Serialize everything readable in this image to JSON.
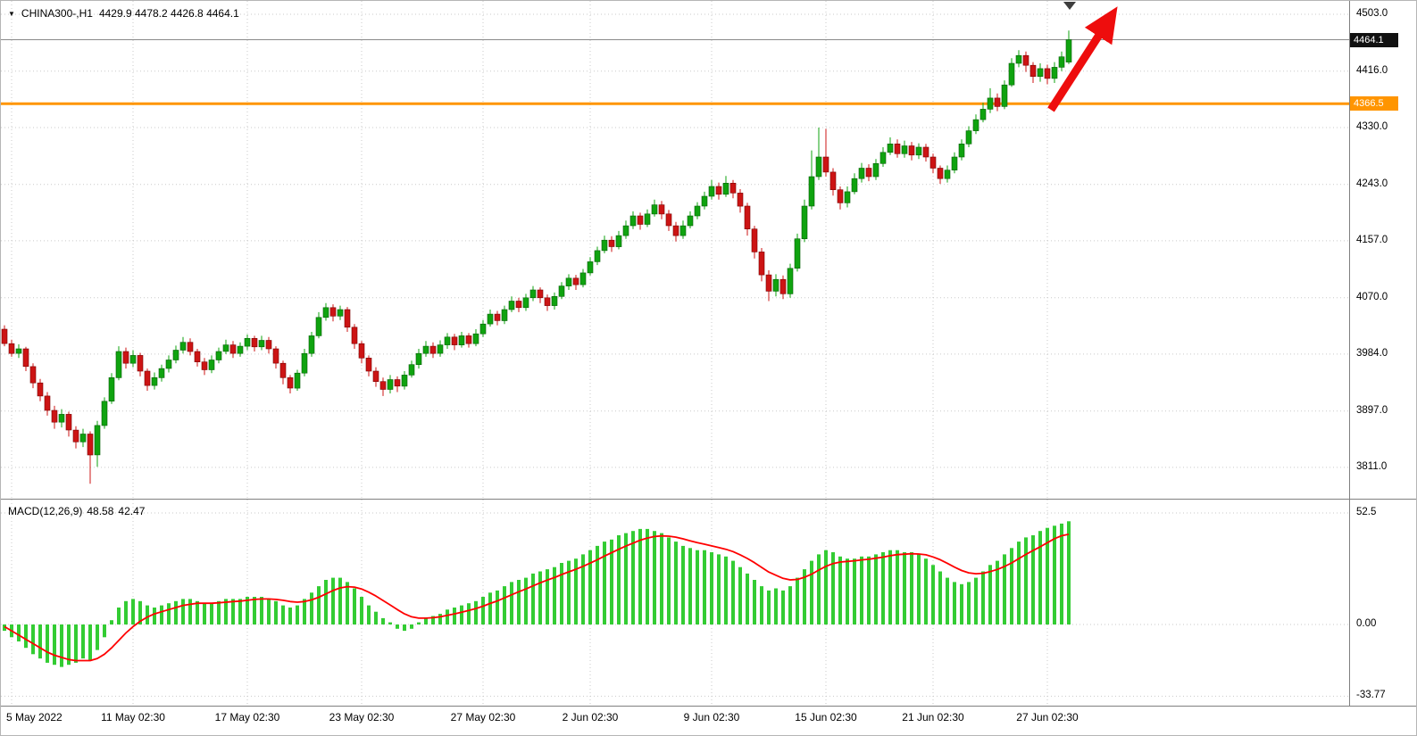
{
  "header": {
    "dropdown_icon": "▼",
    "symbol": "CHINA300-,H1",
    "values": "4429.9 4478.2 4426.8 4464.1"
  },
  "colors": {
    "bull": "#0fa30f",
    "bull_dark": "#055f05",
    "bear": "#cc1414",
    "bear_dark": "#7a0000",
    "hist": "#33cc33",
    "signal": "#ff0000",
    "hline": "#ff9500",
    "grid": "#c9c9c9",
    "price_line": "#8a8a8a",
    "badge_bg": "#111111",
    "arrow": "#ee0d0d",
    "shift_marker": "#3d3d3d"
  },
  "chart_data": {
    "type": "candlestick+macd",
    "title": "CHINA300-,H1",
    "symbol": "CHINA300-",
    "timeframe": "H1",
    "current_bar": {
      "open": 4429.9,
      "high": 4478.2,
      "low": 4426.8,
      "close": 4464.1
    },
    "price_axis": {
      "ticks": [
        "4503.0",
        "4416.0",
        "4330.0",
        "4243.0",
        "4157.0",
        "4070.0",
        "3984.0",
        "3897.0",
        "3811.0"
      ],
      "visible_range": [
        3762,
        4523
      ],
      "current_price": 4464.1,
      "current_price_label": "4464.1",
      "hline_value": 4366.5,
      "hline_label": "4366.5"
    },
    "x_axis": {
      "labels": [
        {
          "text": "5 May 2022",
          "index": 1
        },
        {
          "text": "11 May 02:30",
          "index": 18
        },
        {
          "text": "17 May 02:30",
          "index": 34
        },
        {
          "text": "23 May 02:30",
          "index": 50
        },
        {
          "text": "27 May 02:30",
          "index": 67
        },
        {
          "text": "2 Jun 02:30",
          "index": 82
        },
        {
          "text": "9 Jun 02:30",
          "index": 99
        },
        {
          "text": "15 Jun 02:30",
          "index": 115
        },
        {
          "text": "21 Jun 02:30",
          "index": 130
        },
        {
          "text": "27 Jun 02:30",
          "index": 146
        }
      ]
    },
    "candles": [
      [
        4022,
        4028,
        3996,
        4000
      ],
      [
        4000,
        4006,
        3980,
        3985
      ],
      [
        3985,
        3999,
        3978,
        3992
      ],
      [
        3992,
        3995,
        3958,
        3965
      ],
      [
        3965,
        3970,
        3932,
        3940
      ],
      [
        3940,
        3946,
        3912,
        3920
      ],
      [
        3920,
        3926,
        3890,
        3898
      ],
      [
        3898,
        3905,
        3870,
        3880
      ],
      [
        3880,
        3900,
        3872,
        3892
      ],
      [
        3892,
        3896,
        3858,
        3868
      ],
      [
        3868,
        3874,
        3840,
        3850
      ],
      [
        3850,
        3870,
        3842,
        3862
      ],
      [
        3862,
        3866,
        3786,
        3830
      ],
      [
        3830,
        3882,
        3812,
        3875
      ],
      [
        3875,
        3918,
        3870,
        3912
      ],
      [
        3912,
        3955,
        3908,
        3948
      ],
      [
        3948,
        3996,
        3944,
        3988
      ],
      [
        3988,
        3994,
        3962,
        3970
      ],
      [
        3970,
        3990,
        3964,
        3982
      ],
      [
        3982,
        3986,
        3950,
        3958
      ],
      [
        3958,
        3962,
        3928,
        3936
      ],
      [
        3936,
        3956,
        3930,
        3948
      ],
      [
        3948,
        3968,
        3942,
        3962
      ],
      [
        3962,
        3982,
        3956,
        3975
      ],
      [
        3975,
        3997,
        3970,
        3990
      ],
      [
        3990,
        4010,
        3985,
        4002
      ],
      [
        4002,
        4008,
        3982,
        3988
      ],
      [
        3988,
        3992,
        3965,
        3972
      ],
      [
        3972,
        3978,
        3952,
        3960
      ],
      [
        3960,
        3982,
        3955,
        3975
      ],
      [
        3975,
        3994,
        3970,
        3988
      ],
      [
        3988,
        4006,
        3984,
        3998
      ],
      [
        3998,
        4004,
        3978,
        3985
      ],
      [
        3985,
        4002,
        3980,
        3996
      ],
      [
        3996,
        4014,
        3990,
        4008
      ],
      [
        4008,
        4012,
        3988,
        3995
      ],
      [
        3995,
        4012,
        3990,
        4005
      ],
      [
        4005,
        4010,
        3985,
        3992
      ],
      [
        3992,
        3996,
        3962,
        3970
      ],
      [
        3970,
        3974,
        3938,
        3948
      ],
      [
        3948,
        3952,
        3924,
        3932
      ],
      [
        3932,
        3960,
        3928,
        3955
      ],
      [
        3955,
        3992,
        3950,
        3985
      ],
      [
        3985,
        4018,
        3980,
        4012
      ],
      [
        4012,
        4048,
        4008,
        4040
      ],
      [
        4040,
        4062,
        4035,
        4055
      ],
      [
        4055,
        4060,
        4034,
        4042
      ],
      [
        4042,
        4058,
        4036,
        4052
      ],
      [
        4052,
        4056,
        4018,
        4025
      ],
      [
        4025,
        4030,
        3992,
        4000
      ],
      [
        4000,
        4004,
        3970,
        3978
      ],
      [
        3978,
        3982,
        3950,
        3958
      ],
      [
        3958,
        3964,
        3934,
        3942
      ],
      [
        3942,
        3948,
        3920,
        3930
      ],
      [
        3930,
        3952,
        3924,
        3945
      ],
      [
        3945,
        3950,
        3926,
        3935
      ],
      [
        3935,
        3958,
        3930,
        3952
      ],
      [
        3952,
        3974,
        3948,
        3968
      ],
      [
        3968,
        3992,
        3962,
        3985
      ],
      [
        3985,
        4004,
        3980,
        3996
      ],
      [
        3996,
        4002,
        3978,
        3985
      ],
      [
        3985,
        4005,
        3980,
        3998
      ],
      [
        3998,
        4016,
        3992,
        4010
      ],
      [
        4010,
        4015,
        3990,
        3998
      ],
      [
        3998,
        4018,
        3994,
        4012
      ],
      [
        4012,
        4016,
        3994,
        4000
      ],
      [
        4000,
        4022,
        3996,
        4015
      ],
      [
        4015,
        4036,
        4010,
        4030
      ],
      [
        4030,
        4052,
        4026,
        4045
      ],
      [
        4045,
        4050,
        4028,
        4035
      ],
      [
        4035,
        4058,
        4030,
        4052
      ],
      [
        4052,
        4072,
        4048,
        4065
      ],
      [
        4065,
        4070,
        4048,
        4055
      ],
      [
        4055,
        4076,
        4050,
        4070
      ],
      [
        4070,
        4088,
        4065,
        4082
      ],
      [
        4082,
        4086,
        4062,
        4070
      ],
      [
        4070,
        4075,
        4050,
        4058
      ],
      [
        4058,
        4078,
        4052,
        4072
      ],
      [
        4072,
        4094,
        4068,
        4088
      ],
      [
        4088,
        4106,
        4082,
        4100
      ],
      [
        4100,
        4105,
        4082,
        4090
      ],
      [
        4090,
        4114,
        4086,
        4108
      ],
      [
        4108,
        4132,
        4104,
        4125
      ],
      [
        4125,
        4148,
        4120,
        4142
      ],
      [
        4142,
        4165,
        4138,
        4158
      ],
      [
        4158,
        4164,
        4140,
        4148
      ],
      [
        4148,
        4172,
        4144,
        4165
      ],
      [
        4165,
        4188,
        4160,
        4180
      ],
      [
        4180,
        4202,
        4175,
        4195
      ],
      [
        4195,
        4200,
        4174,
        4182
      ],
      [
        4182,
        4205,
        4178,
        4198
      ],
      [
        4198,
        4220,
        4194,
        4212
      ],
      [
        4212,
        4218,
        4190,
        4198
      ],
      [
        4198,
        4204,
        4172,
        4180
      ],
      [
        4180,
        4186,
        4156,
        4165
      ],
      [
        4165,
        4188,
        4160,
        4180
      ],
      [
        4180,
        4202,
        4176,
        4195
      ],
      [
        4195,
        4216,
        4190,
        4210
      ],
      [
        4210,
        4232,
        4205,
        4225
      ],
      [
        4225,
        4250,
        4220,
        4240
      ],
      [
        4240,
        4246,
        4220,
        4228
      ],
      [
        4228,
        4256,
        4224,
        4245
      ],
      [
        4245,
        4250,
        4222,
        4230
      ],
      [
        4230,
        4236,
        4200,
        4210
      ],
      [
        4210,
        4215,
        4165,
        4175
      ],
      [
        4175,
        4180,
        4130,
        4140
      ],
      [
        4140,
        4146,
        4095,
        4105
      ],
      [
        4105,
        4112,
        4065,
        4080
      ],
      [
        4080,
        4106,
        4072,
        4098
      ],
      [
        4098,
        4104,
        4068,
        4076
      ],
      [
        4076,
        4122,
        4070,
        4115
      ],
      [
        4115,
        4168,
        4110,
        4160
      ],
      [
        4160,
        4220,
        4155,
        4210
      ],
      [
        4210,
        4295,
        4205,
        4255
      ],
      [
        4255,
        4330,
        4250,
        4285
      ],
      [
        4285,
        4328,
        4255,
        4262
      ],
      [
        4262,
        4268,
        4226,
        4235
      ],
      [
        4235,
        4240,
        4205,
        4215
      ],
      [
        4215,
        4240,
        4208,
        4232
      ],
      [
        4232,
        4260,
        4228,
        4252
      ],
      [
        4252,
        4276,
        4246,
        4268
      ],
      [
        4268,
        4274,
        4248,
        4255
      ],
      [
        4255,
        4282,
        4250,
        4275
      ],
      [
        4275,
        4300,
        4270,
        4292
      ],
      [
        4292,
        4315,
        4288,
        4305
      ],
      [
        4305,
        4312,
        4284,
        4290
      ],
      [
        4290,
        4310,
        4284,
        4302
      ],
      [
        4302,
        4308,
        4280,
        4288
      ],
      [
        4288,
        4306,
        4282,
        4300
      ],
      [
        4300,
        4305,
        4278,
        4285
      ],
      [
        4285,
        4290,
        4260,
        4268
      ],
      [
        4268,
        4272,
        4244,
        4252
      ],
      [
        4252,
        4272,
        4246,
        4265
      ],
      [
        4265,
        4292,
        4260,
        4285
      ],
      [
        4285,
        4312,
        4280,
        4305
      ],
      [
        4305,
        4332,
        4300,
        4325
      ],
      [
        4325,
        4350,
        4320,
        4342
      ],
      [
        4342,
        4368,
        4338,
        4358
      ],
      [
        4358,
        4390,
        4352,
        4375
      ],
      [
        4375,
        4382,
        4355,
        4362
      ],
      [
        4362,
        4402,
        4358,
        4395
      ],
      [
        4395,
        4436,
        4392,
        4428
      ],
      [
        4428,
        4448,
        4422,
        4440
      ],
      [
        4440,
        4446,
        4415,
        4425
      ],
      [
        4425,
        4430,
        4398,
        4408
      ],
      [
        4408,
        4428,
        4400,
        4420
      ],
      [
        4420,
        4426,
        4396,
        4405
      ],
      [
        4405,
        4430,
        4398,
        4422
      ],
      [
        4422,
        4446,
        4416,
        4438
      ],
      [
        4429.9,
        4478.2,
        4426.8,
        4464.1
      ]
    ],
    "macd": {
      "label": "MACD(12,26,9)",
      "macd_value": "48.58",
      "signal_value": "42.47",
      "axis_ticks": [
        "52.5",
        "0.00",
        "-33.77"
      ],
      "range": [
        -37.8,
        58.4
      ],
      "histogram": [
        -3,
        -6,
        -8,
        -11,
        -14,
        -16,
        -18,
        -19,
        -20,
        -19,
        -18,
        -16,
        -17,
        -12,
        -6,
        2,
        8,
        11,
        12,
        11,
        9,
        8,
        9,
        10,
        11,
        12,
        12,
        11,
        10,
        10,
        11,
        12,
        12,
        12,
        13,
        13,
        13,
        12,
        11,
        9,
        8,
        9,
        12,
        15,
        18,
        21,
        22,
        22,
        20,
        17,
        13,
        9,
        6,
        3,
        1,
        -2,
        -3,
        -2,
        1,
        3,
        4,
        5,
        7,
        8,
        9,
        10,
        11,
        13,
        15,
        16,
        18,
        20,
        21,
        22,
        24,
        25,
        26,
        27,
        29,
        30,
        31,
        33,
        35,
        37,
        39,
        40,
        42,
        43,
        44,
        45,
        45,
        44,
        43,
        41,
        39,
        37,
        36,
        35,
        35,
        34,
        33,
        32,
        30,
        27,
        24,
        21,
        18,
        16,
        17,
        16,
        18,
        22,
        26,
        30,
        33,
        35,
        34,
        32,
        31,
        31,
        32,
        32,
        33,
        34,
        35,
        35,
        34,
        34,
        33,
        31,
        28,
        25,
        22,
        20,
        19,
        20,
        22,
        25,
        28,
        30,
        33,
        36,
        39,
        41,
        42,
        44,
        45.5,
        46.5,
        47.5,
        48.58
      ],
      "signal": [
        -1,
        -3,
        -5,
        -7,
        -9,
        -11,
        -13,
        -14.5,
        -15.5,
        -16.5,
        -17,
        -17,
        -17,
        -16,
        -14,
        -11,
        -7.5,
        -4,
        -1,
        1.5,
        3.5,
        5,
        6,
        7,
        8,
        9,
        9.5,
        10,
        10,
        10,
        10.2,
        10.5,
        10.8,
        11,
        11.4,
        11.8,
        12,
        12,
        11.8,
        11.4,
        10.8,
        10.5,
        10.8,
        11.6,
        12.8,
        14.4,
        16,
        17.2,
        17.8,
        17.6,
        16.7,
        15.2,
        13.4,
        11.3,
        9.2,
        7,
        5,
        3.6,
        3,
        3,
        3.2,
        3.6,
        4.3,
        5,
        5.8,
        6.6,
        7.5,
        8.6,
        9.9,
        11.1,
        12.5,
        14,
        15.4,
        16.7,
        18.2,
        19.6,
        20.9,
        22.1,
        23.5,
        24.8,
        26,
        27.4,
        28.9,
        30.5,
        32.2,
        33.8,
        35.4,
        36.9,
        38.3,
        39.7,
        40.7,
        41.4,
        41.7,
        41.6,
        41.1,
        40.3,
        39.4,
        38.5,
        37.8,
        37,
        36.2,
        35.4,
        34.3,
        32.8,
        31.1,
        29.1,
        26.9,
        24.7,
        23.2,
        21.7,
        21,
        21.2,
        22.2,
        23.7,
        25.6,
        27.4,
        28.7,
        29.4,
        29.7,
        30,
        30.4,
        30.7,
        31.2,
        31.7,
        32.4,
        32.9,
        33.1,
        33.3,
        33.2,
        32.8,
        31.8,
        30.5,
        28.8,
        27,
        25.4,
        24.3,
        23.9,
        24.1,
        24.9,
        25.9,
        27.3,
        29,
        31,
        33,
        34.8,
        36.6,
        38.5,
        40.4,
        41.8,
        42.47
      ]
    }
  }
}
